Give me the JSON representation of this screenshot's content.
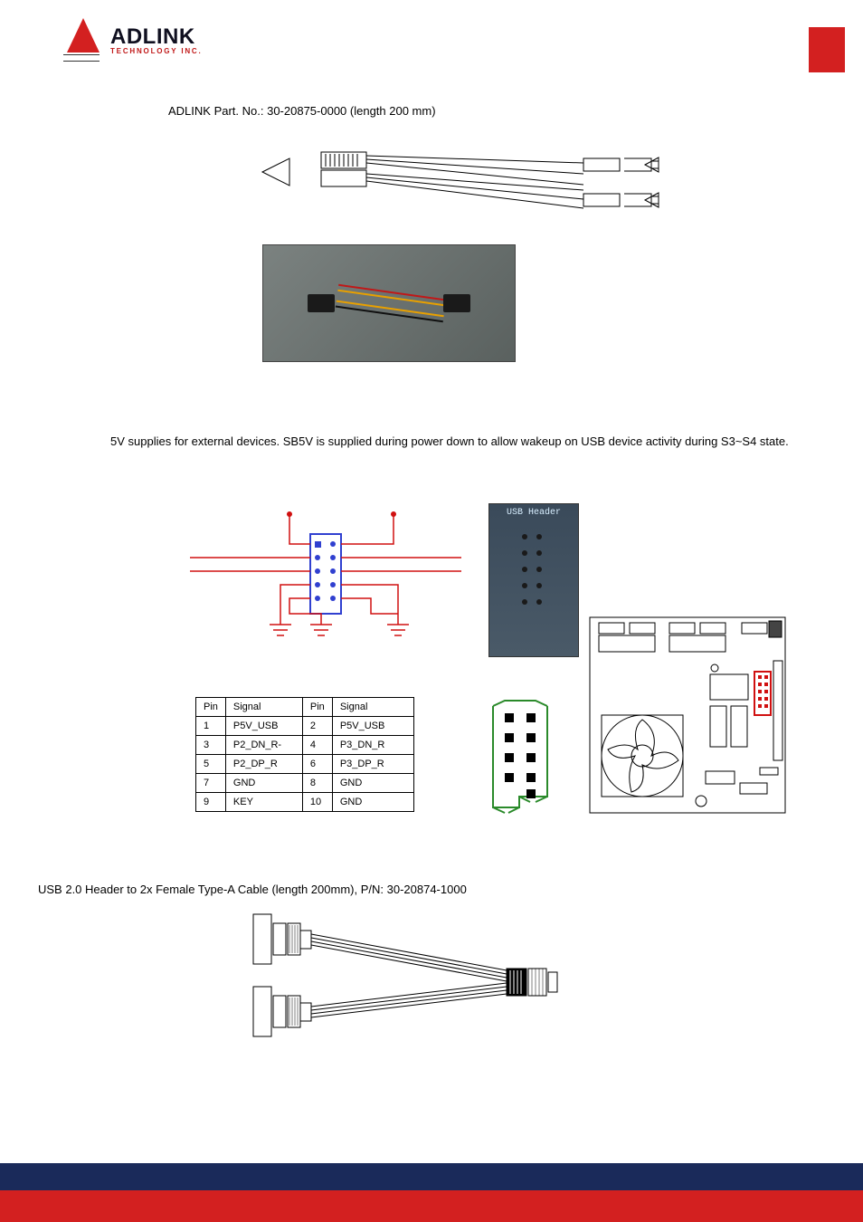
{
  "logo": {
    "title": "ADLINK",
    "subtitle": "TECHNOLOGY INC."
  },
  "part_no": "ADLINK Part. No.: 30-20875-0000 (length 200 mm)",
  "desc": "5V supplies for external devices. SB5V is supplied during power down to allow wakeup on USB device activity during S3~S4 state.",
  "usb_header_photo_label": "USB Header",
  "pin_table": {
    "headers": [
      "Pin",
      "Signal",
      "Pin",
      "Signal"
    ],
    "rows": [
      [
        "1",
        "P5V_USB",
        "2",
        "P5V_USB"
      ],
      [
        "3",
        "P2_DN_R-",
        "4",
        "P3_DN_R"
      ],
      [
        "5",
        "P2_DP_R",
        "6",
        "P3_DP_R"
      ],
      [
        "7",
        "GND",
        "8",
        "GND"
      ],
      [
        "9",
        "KEY",
        "10",
        "GND"
      ]
    ]
  },
  "cable_text": "USB 2.0 Header to 2x Female Type-A Cable (length 200mm), P/N: 30-20874-1000",
  "colors": {
    "red": "#d32020",
    "blue_dark": "#1a2a5a",
    "schematic_blue": "#3040d0",
    "schematic_red": "#d01010",
    "green": "#2a8a2a",
    "photo_bg": "#5a615f"
  },
  "schematic": {
    "header_box": {
      "w": 30,
      "h": 80,
      "border_color": "#3040d0"
    },
    "pin_dot_color": "#3040d0",
    "wire_color": "#d01010",
    "gnd_color": "#d01010"
  },
  "header_outline_color": "#2a8a2a"
}
